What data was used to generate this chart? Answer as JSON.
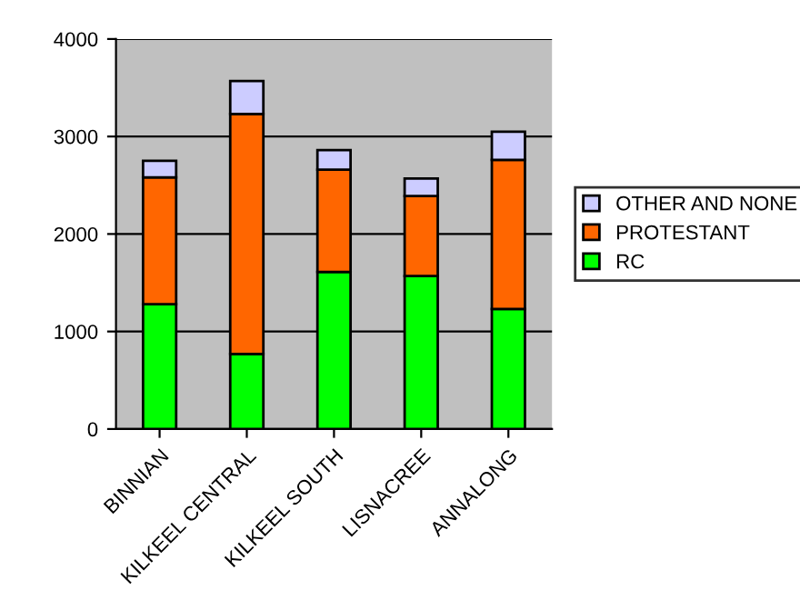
{
  "chart_data": {
    "type": "bar",
    "stacked": true,
    "categories": [
      "BINNIAN",
      "KILKEEL CENTRAL",
      "KILKEEL SOUTH",
      "LISNACREE",
      "ANNALONG"
    ],
    "series": [
      {
        "name": "RC",
        "color": "#00ff00",
        "values": [
          1280,
          770,
          1610,
          1570,
          1230
        ]
      },
      {
        "name": "PROTESTANT",
        "color": "#ff6600",
        "values": [
          1300,
          2460,
          1050,
          820,
          1530
        ]
      },
      {
        "name": "OTHER AND NONE",
        "color": "#ccccff",
        "values": [
          170,
          340,
          200,
          180,
          290
        ]
      }
    ],
    "ylim": [
      0,
      4000
    ],
    "yticks": [
      0,
      1000,
      2000,
      3000,
      4000
    ],
    "grid": "y",
    "legend": "right"
  }
}
